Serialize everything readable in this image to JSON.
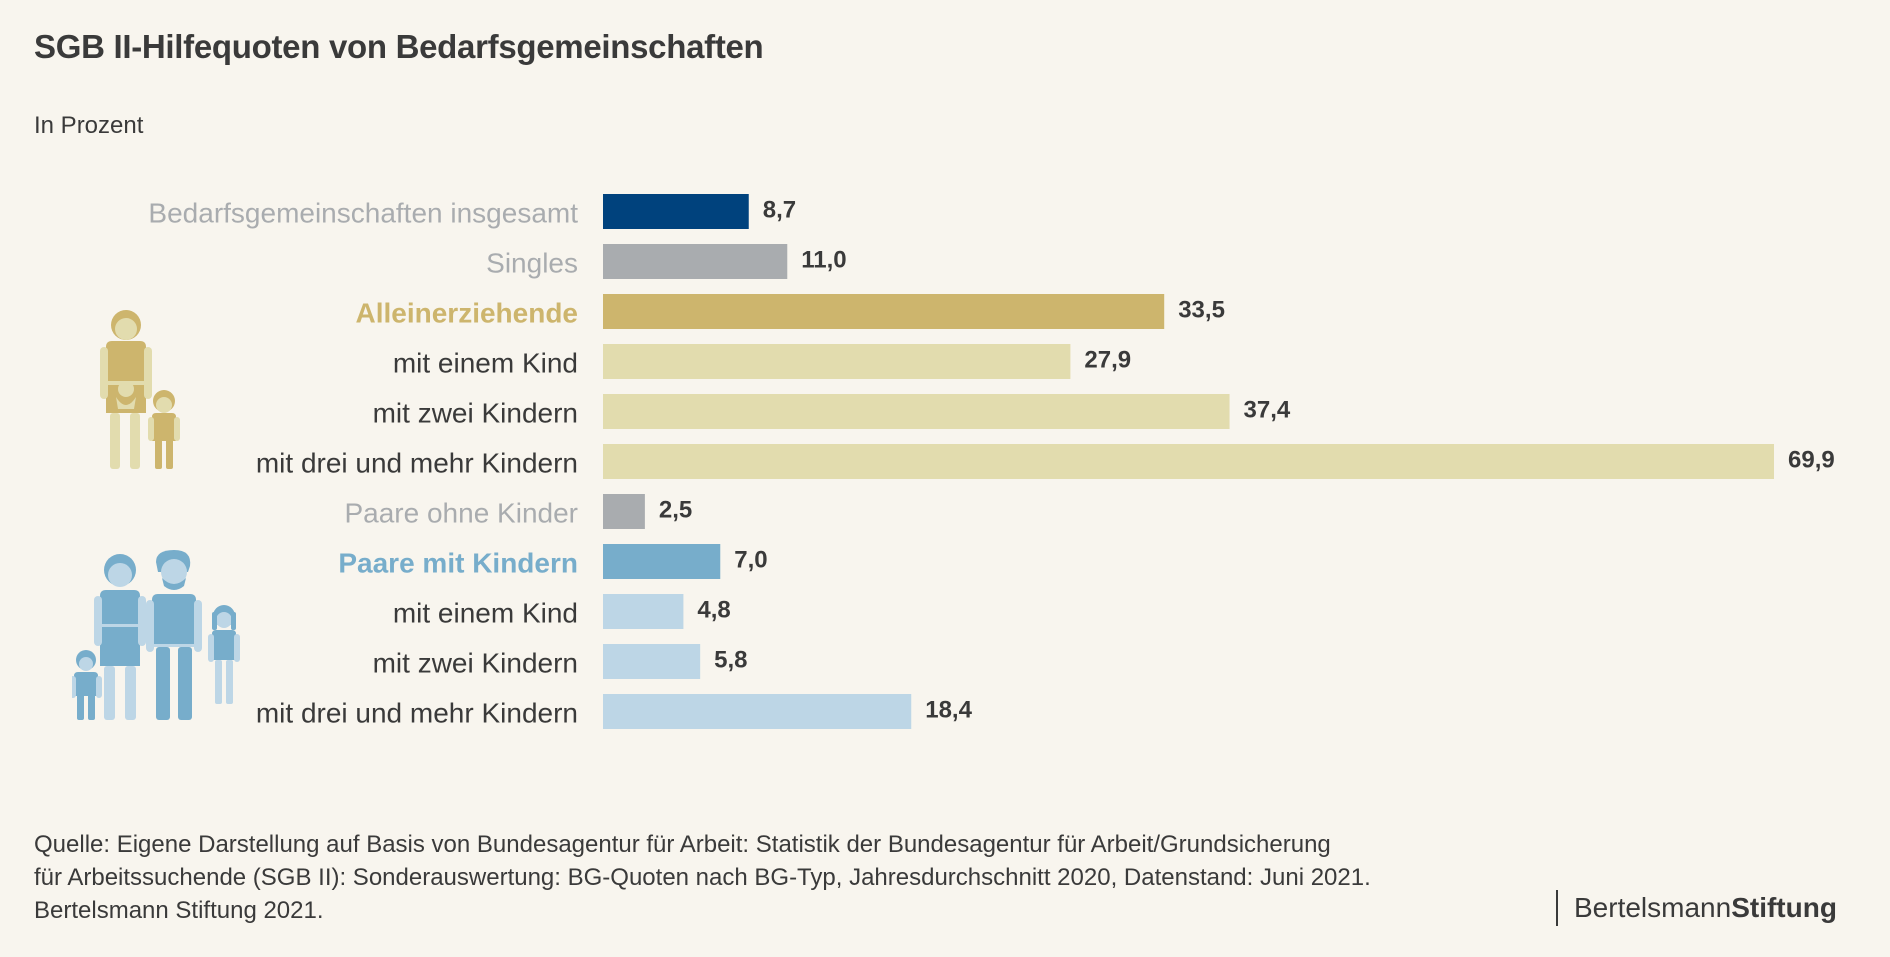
{
  "header": {
    "title": "SGB II-Hilfequoten von Bedarfsgemeinschaften",
    "subtitle": "In Prozent"
  },
  "colors": {
    "background": "#F8F5EE",
    "navy": "#00427D",
    "gray": "#A9ACAF",
    "gold": "#CDB56D",
    "light_gold": "#E2DCAE",
    "blue": "#77ADCB",
    "light_blue": "#BDD6E6",
    "text": "#3A3A3A"
  },
  "chart_data": {
    "type": "bar",
    "orientation": "horizontal",
    "title": "SGB II-Hilfequoten von Bedarfsgemeinschaften",
    "subtitle": "In Prozent",
    "xlabel": "",
    "ylabel": "",
    "xlim": [
      0,
      69.9
    ],
    "grid": false,
    "legend": "none",
    "categories": [
      "Bedarfsgemeinschaften insgesamt",
      "Singles",
      "Alleinerziehende",
      "mit einem Kind",
      "mit zwei Kindern",
      "mit drei und mehr Kindern",
      "Paare ohne Kinder",
      "Paare mit Kindern",
      "mit einem Kind",
      "mit zwei Kindern",
      "mit drei und mehr Kindern"
    ],
    "values": [
      8.7,
      11.0,
      33.5,
      27.9,
      37.4,
      69.9,
      2.5,
      7.0,
      4.8,
      5.8,
      18.4
    ],
    "value_labels": [
      "8,7",
      "11,0",
      "33,5",
      "27,9",
      "37,4",
      "69,9",
      "2,5",
      "7,0",
      "4,8",
      "5,8",
      "18,4"
    ],
    "bar_colors": [
      "#00427D",
      "#A9ACAF",
      "#CDB56D",
      "#E2DCAE",
      "#E2DCAE",
      "#E2DCAE",
      "#A9ACAF",
      "#77ADCB",
      "#BDD6E6",
      "#BDD6E6",
      "#BDD6E6"
    ],
    "label_colors": [
      "#A9ACAF",
      "#A9ACAF",
      "#CDB56D",
      "#3A3A3A",
      "#3A3A3A",
      "#3A3A3A",
      "#A9ACAF",
      "#77ADCB",
      "#3A3A3A",
      "#3A3A3A",
      "#3A3A3A"
    ],
    "label_bold": [
      false,
      false,
      true,
      false,
      false,
      false,
      false,
      true,
      false,
      false,
      false
    ]
  },
  "icons": {
    "single_parent": "single-parent-family-icon",
    "couple_family": "couple-with-children-family-icon"
  },
  "footer": {
    "source_lines": [
      "Quelle: Eigene Darstellung auf Basis von Bundesagentur für Arbeit: Statistik der Bundesagentur für Arbeit/Grundsicherung",
      "für Arbeitssuchende (SGB II): Sonderauswertung: BG-Quoten nach BG-Typ, Jahresdurchschnitt 2020, Datenstand: Juni 2021.",
      "Bertelsmann Stiftung 2021."
    ],
    "logo_regular": "Bertelsmann",
    "logo_bold": "Stiftung"
  }
}
